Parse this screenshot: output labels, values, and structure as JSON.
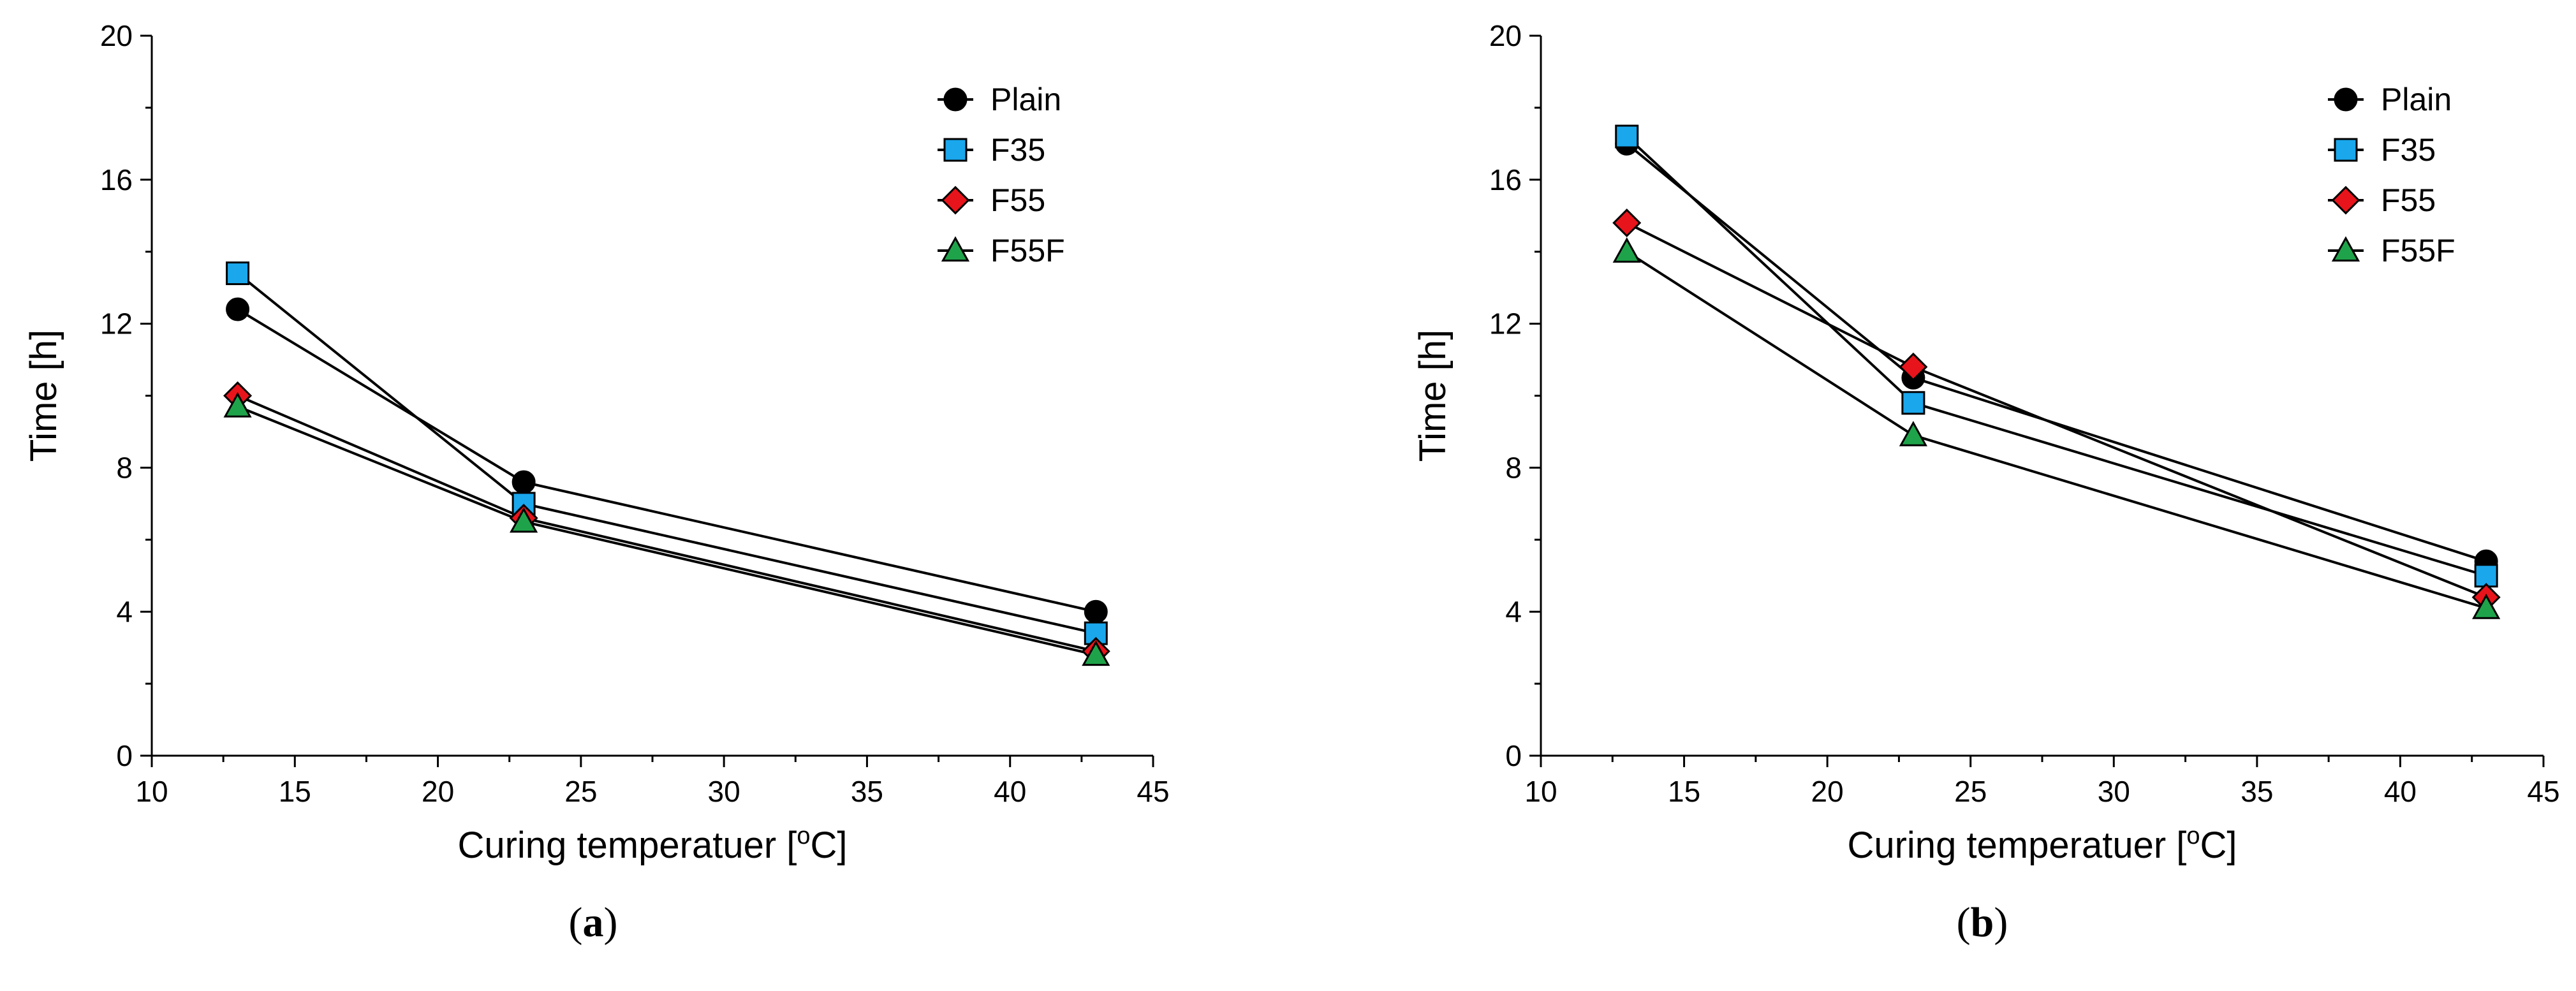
{
  "chart_data": [
    {
      "type": "line",
      "panel_label": "a",
      "xlabel": "Curing temperatuer [",
      "xlabel_superscript": "o",
      "xlabel_suffix": "C]",
      "ylabel": "Time [h]",
      "xlim": [
        10,
        45
      ],
      "ylim": [
        0,
        20
      ],
      "xticks": [
        "10",
        "15",
        "20",
        "25",
        "30",
        "35",
        "40",
        "45"
      ],
      "yticks": [
        "0",
        "4",
        "8",
        "12",
        "16",
        "20"
      ],
      "legend_position": "top-right",
      "grid": false,
      "x": [
        13,
        23,
        43
      ],
      "series": [
        {
          "name": "Plain",
          "marker": "circle",
          "color": "#000000",
          "values": [
            12.4,
            7.6,
            4.0
          ]
        },
        {
          "name": "F35",
          "marker": "square",
          "color": "#1aa7ec",
          "values": [
            13.4,
            7.0,
            3.4
          ]
        },
        {
          "name": "F55",
          "marker": "diamond",
          "color": "#e8141b",
          "values": [
            10.0,
            6.6,
            2.9
          ]
        },
        {
          "name": "F55F",
          "marker": "triangle",
          "color": "#1fa34a",
          "values": [
            9.7,
            6.5,
            2.8
          ]
        }
      ]
    },
    {
      "type": "line",
      "panel_label": "b",
      "xlabel": "Curing temperatuer [",
      "xlabel_superscript": "o",
      "xlabel_suffix": "C]",
      "ylabel": "Time [h]",
      "xlim": [
        10,
        45
      ],
      "ylim": [
        0,
        20
      ],
      "xticks": [
        "10",
        "15",
        "20",
        "25",
        "30",
        "35",
        "40",
        "45"
      ],
      "yticks": [
        "0",
        "4",
        "8",
        "12",
        "16",
        "20"
      ],
      "legend_position": "top-right",
      "grid": false,
      "x": [
        13,
        23,
        43
      ],
      "series": [
        {
          "name": "Plain",
          "marker": "circle",
          "color": "#000000",
          "values": [
            17.0,
            10.5,
            5.4
          ]
        },
        {
          "name": "F35",
          "marker": "square",
          "color": "#1aa7ec",
          "values": [
            17.2,
            9.8,
            5.0
          ]
        },
        {
          "name": "F55",
          "marker": "diamond",
          "color": "#e8141b",
          "values": [
            14.8,
            10.8,
            4.4
          ]
        },
        {
          "name": "F55F",
          "marker": "triangle",
          "color": "#1fa34a",
          "values": [
            14.0,
            8.9,
            4.1
          ]
        }
      ]
    }
  ]
}
